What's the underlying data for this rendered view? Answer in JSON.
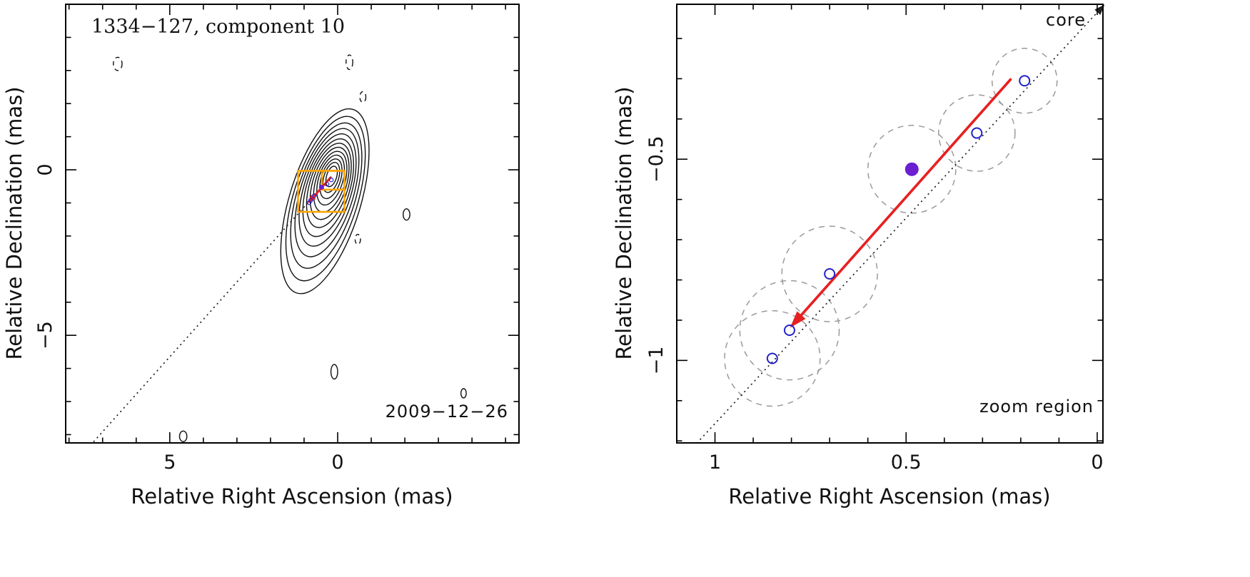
{
  "colors": {
    "contour": "#111111",
    "zoom_box": "#ffa500",
    "arrow": "#e62020",
    "open_point": "#2222cc",
    "filled_point": "#6a1fd0",
    "uncertainty": "#9a9a9a",
    "core_line": "#222222",
    "annotation": "#3c3c3c"
  },
  "chart_data": [
    {
      "type": "contour",
      "panel": "left",
      "title": "1334−127, component 10",
      "epoch_label": "2009−12−26",
      "xlabel": "Relative Right Ascension (mas)",
      "ylabel": "Relative Declination (mas)",
      "xlim": [
        8.1,
        -5.4
      ],
      "ylim": [
        5.0,
        -8.25
      ],
      "xticks": {
        "minor_step": 1,
        "labels": [
          {
            "value": 5,
            "label": "5"
          },
          {
            "value": 0,
            "label": "0"
          }
        ]
      },
      "yticks": {
        "minor_step": 1,
        "labels": [
          {
            "value": 0,
            "label": "0"
          },
          {
            "value": -5,
            "label": "−5"
          }
        ]
      },
      "contour_angle_deg": 17,
      "contour_levels": [
        {
          "ra": 0.18,
          "dec": -0.2,
          "rx": 0.15,
          "ry": 0.32
        },
        {
          "ra": 0.19,
          "dec": -0.23,
          "rx": 0.22,
          "ry": 0.47
        },
        {
          "ra": 0.2,
          "dec": -0.27,
          "rx": 0.29,
          "ry": 0.62
        },
        {
          "ra": 0.21,
          "dec": -0.31,
          "rx": 0.36,
          "ry": 0.78
        },
        {
          "ra": 0.22,
          "dec": -0.36,
          "rx": 0.43,
          "ry": 0.95
        },
        {
          "ra": 0.24,
          "dec": -0.41,
          "rx": 0.5,
          "ry": 1.13
        },
        {
          "ra": 0.26,
          "dec": -0.47,
          "rx": 0.57,
          "ry": 1.32
        },
        {
          "ra": 0.28,
          "dec": -0.54,
          "rx": 0.64,
          "ry": 1.53
        },
        {
          "ra": 0.3,
          "dec": -0.61,
          "rx": 0.71,
          "ry": 1.76
        },
        {
          "ra": 0.32,
          "dec": -0.69,
          "rx": 0.79,
          "ry": 2.01
        },
        {
          "ra": 0.34,
          "dec": -0.78,
          "rx": 0.87,
          "ry": 2.28
        },
        {
          "ra": 0.36,
          "dec": -0.87,
          "rx": 0.96,
          "ry": 2.58
        },
        {
          "ra": 0.38,
          "dec": -0.95,
          "rx": 1.06,
          "ry": 2.9
        }
      ],
      "noise_contours": [
        {
          "ra": 6.55,
          "dec": 3.2,
          "rx": 0.13,
          "ry": 0.2,
          "dashed": true
        },
        {
          "ra": -0.35,
          "dec": 3.25,
          "rx": 0.1,
          "ry": 0.22,
          "dashed": true
        },
        {
          "ra": -0.75,
          "dec": 2.2,
          "rx": 0.09,
          "ry": 0.16,
          "dashed": true
        },
        {
          "ra": -2.05,
          "dec": -1.35,
          "rx": 0.1,
          "ry": 0.17,
          "dashed": false
        },
        {
          "ra": -0.6,
          "dec": -2.1,
          "rx": 0.08,
          "ry": 0.15,
          "dashed": true
        },
        {
          "ra": 0.1,
          "dec": -6.1,
          "rx": 0.1,
          "ry": 0.22,
          "dashed": false
        },
        {
          "ra": -3.75,
          "dec": -6.75,
          "rx": 0.08,
          "ry": 0.14,
          "dashed": false
        },
        {
          "ra": 4.6,
          "dec": -8.05,
          "rx": 0.11,
          "ry": 0.16,
          "dashed": false
        }
      ],
      "zoom_boxes": [
        {
          "ra0": 1.18,
          "dec0": -0.03,
          "ra1": -0.2,
          "dec1": -1.27
        },
        {
          "ra0": 0.47,
          "dec0": -0.03,
          "ra1": -0.2,
          "dec1": -0.6
        }
      ],
      "motion_arrow": {
        "from": [
          0.2,
          -0.22
        ],
        "to": [
          0.86,
          -0.98
        ]
      },
      "core_line": {
        "from": [
          0.2,
          -0.22
        ],
        "to": [
          7.3,
          -8.25
        ]
      }
    },
    {
      "type": "scatter",
      "panel": "right",
      "xlabel": "Relative Right Ascension (mas)",
      "ylabel": "Relative Declination (mas)",
      "xlim": [
        1.1,
        -0.015
      ],
      "ylim": [
        -0.115,
        -1.205
      ],
      "xticks": {
        "minor_step": 0.1,
        "labels": [
          {
            "value": 1,
            "label": "1"
          },
          {
            "value": 0.5,
            "label": "0.5"
          },
          {
            "value": 0,
            "label": "0"
          }
        ]
      },
      "yticks": {
        "minor_step": 0.1,
        "labels": [
          {
            "value": -0.5,
            "label": "−0.5"
          },
          {
            "value": -1,
            "label": "−1"
          }
        ]
      },
      "core_label": "core",
      "zoom_label": "zoom region",
      "points": [
        {
          "ra": 0.19,
          "dec": -0.305,
          "r_unc": 0.085,
          "filled": false
        },
        {
          "ra": 0.315,
          "dec": -0.435,
          "r_unc": 0.1,
          "filled": false
        },
        {
          "ra": 0.485,
          "dec": -0.525,
          "r_unc": 0.115,
          "filled": true
        },
        {
          "ra": 0.7,
          "dec": -0.785,
          "r_unc": 0.125,
          "filled": false
        },
        {
          "ra": 0.805,
          "dec": -0.925,
          "r_unc": 0.13,
          "filled": false
        },
        {
          "ra": 0.85,
          "dec": -0.995,
          "r_unc": 0.125,
          "filled": false
        }
      ],
      "motion_arrow": {
        "from": [
          0.225,
          -0.3
        ],
        "to": [
          0.8,
          -0.915
        ]
      },
      "core_line": {
        "from": [
          1.047,
          -1.205
        ],
        "to": [
          -0.017,
          -0.118
        ]
      }
    }
  ]
}
